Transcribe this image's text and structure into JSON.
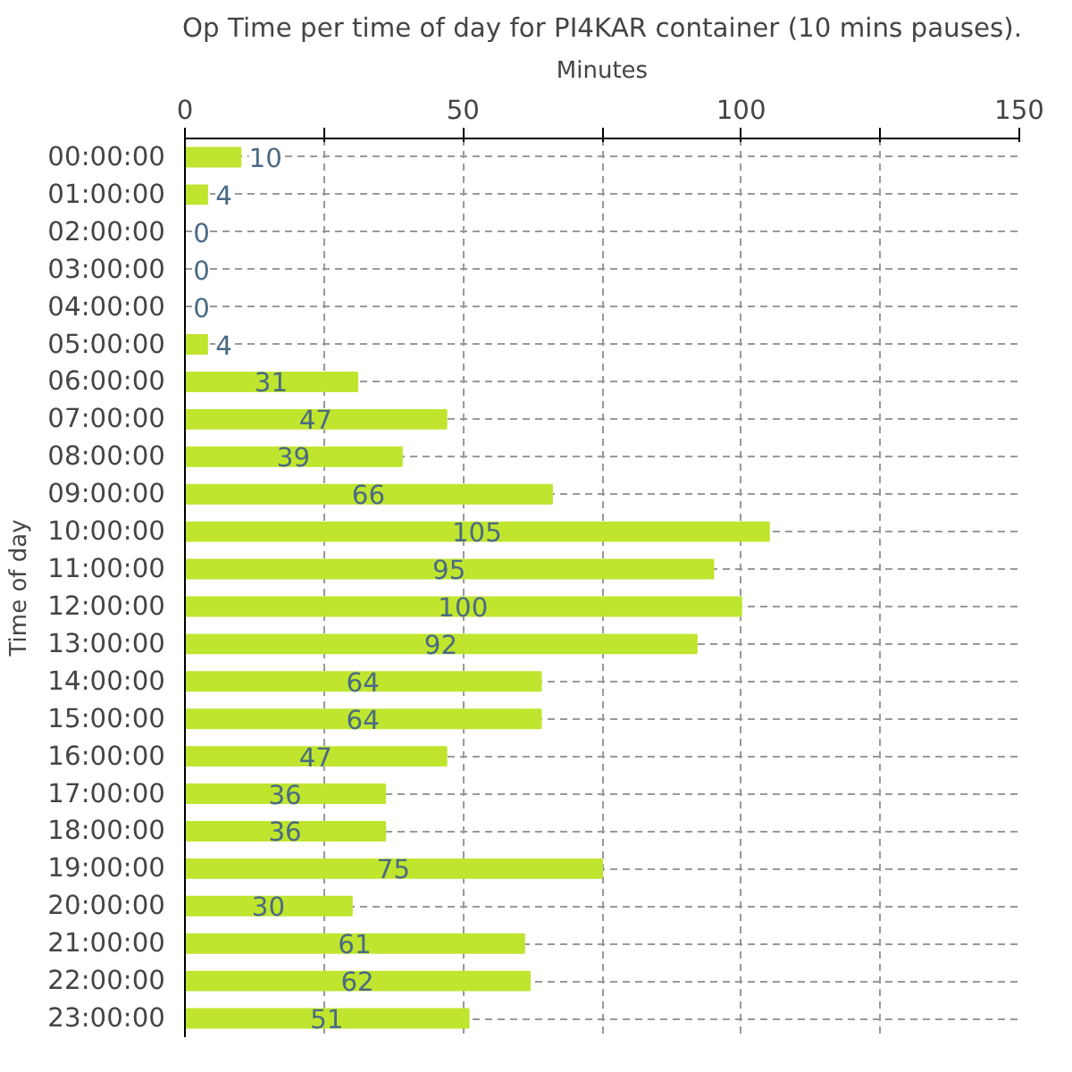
{
  "chart_data": {
    "type": "bar",
    "orientation": "horizontal",
    "title": "Op Time per time of day for PI4KAR container (10 mins pauses).",
    "xlabel": "Minutes",
    "ylabel": "Time of day",
    "categories": [
      "00:00:00",
      "01:00:00",
      "02:00:00",
      "03:00:00",
      "04:00:00",
      "05:00:00",
      "06:00:00",
      "07:00:00",
      "08:00:00",
      "09:00:00",
      "10:00:00",
      "11:00:00",
      "12:00:00",
      "13:00:00",
      "14:00:00",
      "15:00:00",
      "16:00:00",
      "17:00:00",
      "18:00:00",
      "19:00:00",
      "20:00:00",
      "21:00:00",
      "22:00:00",
      "23:00:00"
    ],
    "values": [
      10,
      4,
      0,
      0,
      0,
      4,
      31,
      47,
      39,
      66,
      105,
      95,
      100,
      92,
      64,
      64,
      47,
      36,
      36,
      75,
      30,
      61,
      62,
      51
    ],
    "color": "#bfe52e",
    "xlim": [
      0,
      150
    ],
    "xticks": [
      0,
      {
        "value": 25,
        "label": null
      },
      50,
      {
        "value": 75,
        "label": null
      },
      100,
      {
        "value": 125,
        "label": null
      },
      150
    ],
    "grid": true,
    "data_labels": true
  }
}
